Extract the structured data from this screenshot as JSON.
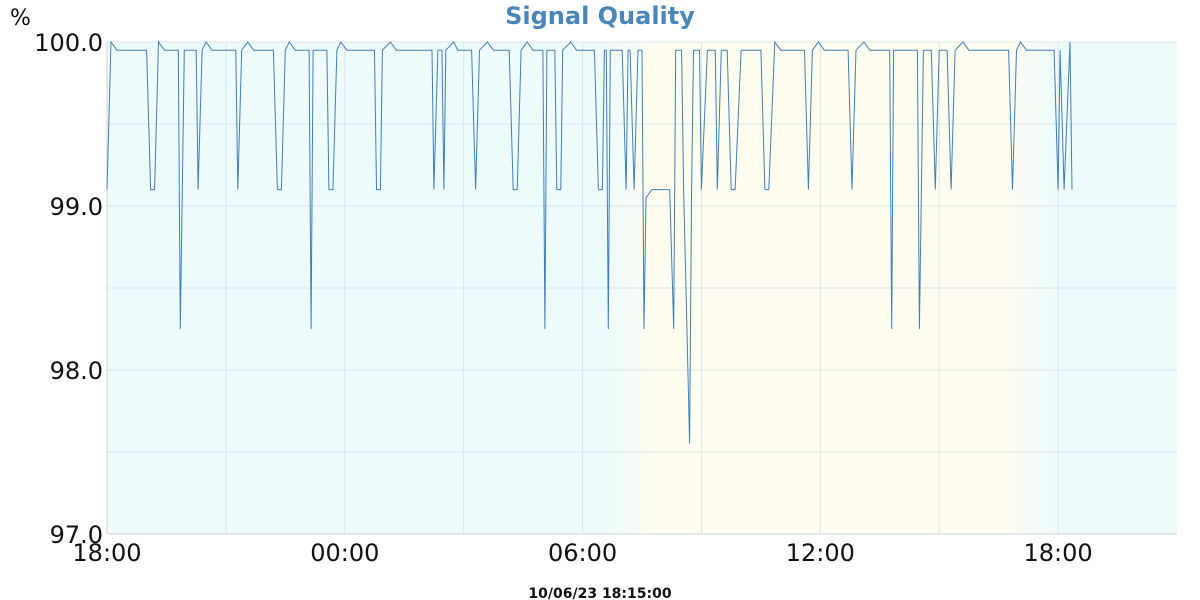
{
  "chart_data": {
    "type": "line",
    "title": "Signal Quality",
    "ylabel": "%",
    "xlabel": "",
    "timestamp": "10/06/23 18:15:00",
    "ylim": [
      97.0,
      100.0
    ],
    "xlim_hours": [
      18.0,
      45.0
    ],
    "x_ticks": [
      {
        "label": "18:00",
        "hour": 18
      },
      {
        "label": "00:00",
        "hour": 24
      },
      {
        "label": "06:00",
        "hour": 30
      },
      {
        "label": "12:00",
        "hour": 36
      },
      {
        "label": "18:00",
        "hour": 42
      }
    ],
    "y_ticks": [
      {
        "label": "97.0",
        "value": 97.0
      },
      {
        "label": "98.0",
        "value": 98.0
      },
      {
        "label": "99.0",
        "value": 99.0
      },
      {
        "label": "100.0",
        "value": 100.0
      }
    ],
    "grid": true,
    "colors": {
      "title": "#4a86b9",
      "line": "#3f7fb5",
      "night_band": "#eefbfd",
      "day_band": "#fefdf0",
      "grid": "#dde6ea"
    },
    "day_band_hours": [
      31.0,
      41.5
    ],
    "series": [
      {
        "name": "",
        "points": [
          [
            18.0,
            99.1
          ],
          [
            18.1,
            100.0
          ],
          [
            18.25,
            99.95
          ],
          [
            19.0,
            99.95
          ],
          [
            19.1,
            99.1
          ],
          [
            19.2,
            99.1
          ],
          [
            19.3,
            100.0
          ],
          [
            19.45,
            99.95
          ],
          [
            19.8,
            99.95
          ],
          [
            19.85,
            98.25
          ],
          [
            19.95,
            99.95
          ],
          [
            20.25,
            99.95
          ],
          [
            20.3,
            99.1
          ],
          [
            20.4,
            99.95
          ],
          [
            20.5,
            100.0
          ],
          [
            20.65,
            99.95
          ],
          [
            21.25,
            99.95
          ],
          [
            21.3,
            99.1
          ],
          [
            21.4,
            99.95
          ],
          [
            21.55,
            100.0
          ],
          [
            21.7,
            99.95
          ],
          [
            22.2,
            99.95
          ],
          [
            22.3,
            99.1
          ],
          [
            22.4,
            99.1
          ],
          [
            22.5,
            99.95
          ],
          [
            22.6,
            100.0
          ],
          [
            22.75,
            99.95
          ],
          [
            23.1,
            99.95
          ],
          [
            23.15,
            98.25
          ],
          [
            23.2,
            99.95
          ],
          [
            23.55,
            99.95
          ],
          [
            23.6,
            99.1
          ],
          [
            23.7,
            99.1
          ],
          [
            23.8,
            99.95
          ],
          [
            23.9,
            100.0
          ],
          [
            24.05,
            99.95
          ],
          [
            24.75,
            99.95
          ],
          [
            24.8,
            99.1
          ],
          [
            24.9,
            99.1
          ],
          [
            24.95,
            99.95
          ],
          [
            25.15,
            100.0
          ],
          [
            25.3,
            99.95
          ],
          [
            26.2,
            99.95
          ],
          [
            26.25,
            99.1
          ],
          [
            26.35,
            99.95
          ],
          [
            26.45,
            99.95
          ],
          [
            26.5,
            99.1
          ],
          [
            26.55,
            99.95
          ],
          [
            26.75,
            100.0
          ],
          [
            26.85,
            99.95
          ],
          [
            27.2,
            99.95
          ],
          [
            27.3,
            99.1
          ],
          [
            27.4,
            99.95
          ],
          [
            27.6,
            100.0
          ],
          [
            27.75,
            99.95
          ],
          [
            28.15,
            99.95
          ],
          [
            28.25,
            99.1
          ],
          [
            28.35,
            99.1
          ],
          [
            28.45,
            99.95
          ],
          [
            28.6,
            100.0
          ],
          [
            28.75,
            99.95
          ],
          [
            29.0,
            99.95
          ],
          [
            29.05,
            98.25
          ],
          [
            29.1,
            99.95
          ],
          [
            29.3,
            99.95
          ],
          [
            29.35,
            99.1
          ],
          [
            29.45,
            99.1
          ],
          [
            29.5,
            99.95
          ],
          [
            29.7,
            100.0
          ],
          [
            29.85,
            99.95
          ],
          [
            30.3,
            99.95
          ],
          [
            30.4,
            99.1
          ],
          [
            30.5,
            99.1
          ],
          [
            30.55,
            99.95
          ],
          [
            30.6,
            99.95
          ],
          [
            30.65,
            98.25
          ],
          [
            30.7,
            99.95
          ],
          [
            31.0,
            99.95
          ],
          [
            31.1,
            99.1
          ],
          [
            31.15,
            99.95
          ],
          [
            31.2,
            99.95
          ],
          [
            31.3,
            99.1
          ],
          [
            31.4,
            99.95
          ],
          [
            31.5,
            99.95
          ],
          [
            31.55,
            98.25
          ],
          [
            31.6,
            99.05
          ],
          [
            31.75,
            99.1
          ],
          [
            32.2,
            99.1
          ],
          [
            32.3,
            98.25
          ],
          [
            32.35,
            99.95
          ],
          [
            32.5,
            99.95
          ],
          [
            32.55,
            99.1
          ],
          [
            32.6,
            98.6
          ],
          [
            32.7,
            97.55
          ],
          [
            32.75,
            99.05
          ],
          [
            32.8,
            99.95
          ],
          [
            32.95,
            99.95
          ],
          [
            33.0,
            99.1
          ],
          [
            33.15,
            99.95
          ],
          [
            33.35,
            99.95
          ],
          [
            33.4,
            99.1
          ],
          [
            33.5,
            99.95
          ],
          [
            33.65,
            99.95
          ],
          [
            33.75,
            99.1
          ],
          [
            33.85,
            99.1
          ],
          [
            34.0,
            99.95
          ],
          [
            34.5,
            99.95
          ],
          [
            34.6,
            99.1
          ],
          [
            34.7,
            99.1
          ],
          [
            34.85,
            100.0
          ],
          [
            35.0,
            99.95
          ],
          [
            35.6,
            99.95
          ],
          [
            35.7,
            99.1
          ],
          [
            35.8,
            99.95
          ],
          [
            35.95,
            100.0
          ],
          [
            36.1,
            99.95
          ],
          [
            36.7,
            99.95
          ],
          [
            36.8,
            99.1
          ],
          [
            36.9,
            99.95
          ],
          [
            37.1,
            100.0
          ],
          [
            37.25,
            99.95
          ],
          [
            37.75,
            99.95
          ],
          [
            37.8,
            98.25
          ],
          [
            37.85,
            99.95
          ],
          [
            38.45,
            99.95
          ],
          [
            38.5,
            98.25
          ],
          [
            38.6,
            99.95
          ],
          [
            38.8,
            99.95
          ],
          [
            38.9,
            99.1
          ],
          [
            39.0,
            99.95
          ],
          [
            39.2,
            99.95
          ],
          [
            39.3,
            99.1
          ],
          [
            39.4,
            99.95
          ],
          [
            39.6,
            100.0
          ],
          [
            39.75,
            99.95
          ],
          [
            40.75,
            99.95
          ],
          [
            40.85,
            99.1
          ],
          [
            40.95,
            99.95
          ],
          [
            41.05,
            100.0
          ],
          [
            41.2,
            99.95
          ],
          [
            41.9,
            99.95
          ],
          [
            42.0,
            99.1
          ],
          [
            42.05,
            99.95
          ],
          [
            42.15,
            99.1
          ],
          [
            42.3,
            100.0
          ],
          [
            42.35,
            99.1
          ]
        ]
      }
    ]
  }
}
